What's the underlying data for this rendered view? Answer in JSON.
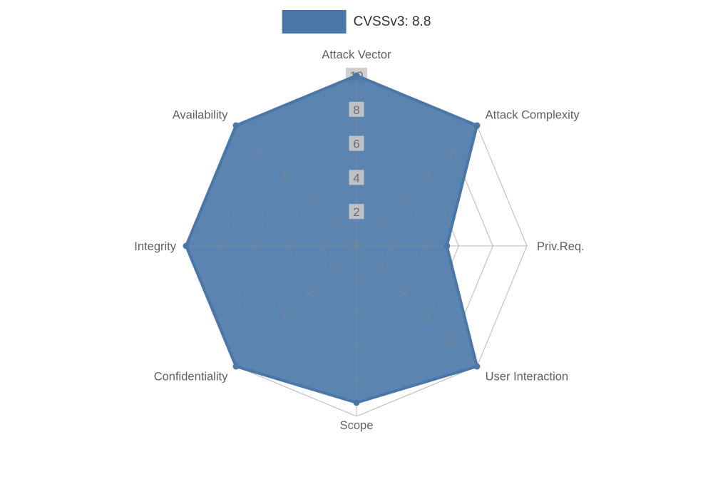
{
  "legend": {
    "label": "CVSSv3: 8.8"
  },
  "colors": {
    "series": "#4a77a8",
    "series_fill_opacity": 0.9,
    "grid": "#888888",
    "grid_opacity": 0.6,
    "tick_text": "#6b6b6b",
    "tick_backdrop": "#c9c9c9",
    "axis_label": "#5f5f5f",
    "legend_text": "#333333"
  },
  "chart_data": {
    "type": "radar",
    "title": "CVSSv3: 8.8",
    "categories": [
      "Attack Vector",
      "Attack Complexity",
      "Priv.Req.",
      "User Interaction",
      "Scope",
      "Confidentiality",
      "Integrity",
      "Availability"
    ],
    "series": [
      {
        "name": "CVSSv3: 8.8",
        "values": [
          10,
          10,
          5.3,
          10,
          9.2,
          10,
          10,
          10
        ]
      }
    ],
    "rlim": [
      0,
      10
    ],
    "ticks": [
      2,
      4,
      6,
      8,
      10
    ],
    "grid": "polygon",
    "legend_position": "top"
  }
}
